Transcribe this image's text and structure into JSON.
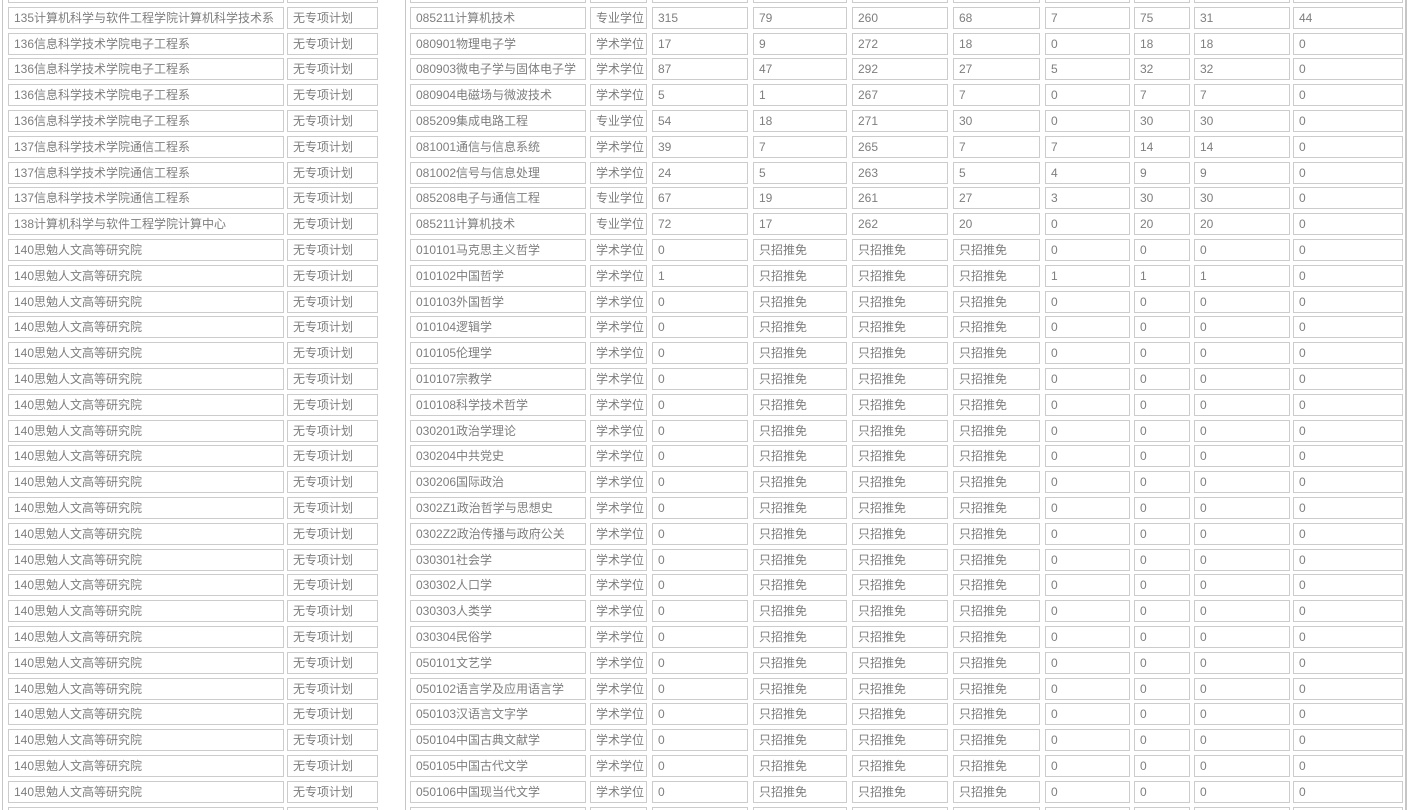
{
  "colors": {
    "cell_border": "#cccccc",
    "frame_border": "#c6c6c6",
    "text": "#7e7e7e",
    "background": "#ffffff"
  },
  "table": {
    "rows": [
      [
        "135计算机科学与软件工程学院计算机科学技术系",
        "无专项计划",
        "085211计算机技术",
        "专业学位",
        "315",
        "79",
        "260",
        "68",
        "7",
        "75",
        "31",
        "44"
      ],
      [
        "136信息科学技术学院电子工程系",
        "无专项计划",
        "080901物理电子学",
        "学术学位",
        "17",
        "9",
        "272",
        "18",
        "0",
        "18",
        "18",
        "0"
      ],
      [
        "136信息科学技术学院电子工程系",
        "无专项计划",
        "080903微电子学与固体电子学",
        "学术学位",
        "87",
        "47",
        "292",
        "27",
        "5",
        "32",
        "32",
        "0"
      ],
      [
        "136信息科学技术学院电子工程系",
        "无专项计划",
        "080904电磁场与微波技术",
        "学术学位",
        "5",
        "1",
        "267",
        "7",
        "0",
        "7",
        "7",
        "0"
      ],
      [
        "136信息科学技术学院电子工程系",
        "无专项计划",
        "085209集成电路工程",
        "专业学位",
        "54",
        "18",
        "271",
        "30",
        "0",
        "30",
        "30",
        "0"
      ],
      [
        "137信息科学技术学院通信工程系",
        "无专项计划",
        "081001通信与信息系统",
        "学术学位",
        "39",
        "7",
        "265",
        "7",
        "7",
        "14",
        "14",
        "0"
      ],
      [
        "137信息科学技术学院通信工程系",
        "无专项计划",
        "081002信号与信息处理",
        "学术学位",
        "24",
        "5",
        "263",
        "5",
        "4",
        "9",
        "9",
        "0"
      ],
      [
        "137信息科学技术学院通信工程系",
        "无专项计划",
        "085208电子与通信工程",
        "专业学位",
        "67",
        "19",
        "261",
        "27",
        "3",
        "30",
        "30",
        "0"
      ],
      [
        "138计算机科学与软件工程学院计算中心",
        "无专项计划",
        "085211计算机技术",
        "专业学位",
        "72",
        "17",
        "262",
        "20",
        "0",
        "20",
        "20",
        "0"
      ],
      [
        "140思勉人文高等研究院",
        "无专项计划",
        "010101马克思主义哲学",
        "学术学位",
        "0",
        "只招推免",
        "只招推免",
        "只招推免",
        "0",
        "0",
        "0",
        "0"
      ],
      [
        "140思勉人文高等研究院",
        "无专项计划",
        "010102中国哲学",
        "学术学位",
        "1",
        "只招推免",
        "只招推免",
        "只招推免",
        "1",
        "1",
        "1",
        "0"
      ],
      [
        "140思勉人文高等研究院",
        "无专项计划",
        "010103外国哲学",
        "学术学位",
        "0",
        "只招推免",
        "只招推免",
        "只招推免",
        "0",
        "0",
        "0",
        "0"
      ],
      [
        "140思勉人文高等研究院",
        "无专项计划",
        "010104逻辑学",
        "学术学位",
        "0",
        "只招推免",
        "只招推免",
        "只招推免",
        "0",
        "0",
        "0",
        "0"
      ],
      [
        "140思勉人文高等研究院",
        "无专项计划",
        "010105伦理学",
        "学术学位",
        "0",
        "只招推免",
        "只招推免",
        "只招推免",
        "0",
        "0",
        "0",
        "0"
      ],
      [
        "140思勉人文高等研究院",
        "无专项计划",
        "010107宗教学",
        "学术学位",
        "0",
        "只招推免",
        "只招推免",
        "只招推免",
        "0",
        "0",
        "0",
        "0"
      ],
      [
        "140思勉人文高等研究院",
        "无专项计划",
        "010108科学技术哲学",
        "学术学位",
        "0",
        "只招推免",
        "只招推免",
        "只招推免",
        "0",
        "0",
        "0",
        "0"
      ],
      [
        "140思勉人文高等研究院",
        "无专项计划",
        "030201政治学理论",
        "学术学位",
        "0",
        "只招推免",
        "只招推免",
        "只招推免",
        "0",
        "0",
        "0",
        "0"
      ],
      [
        "140思勉人文高等研究院",
        "无专项计划",
        "030204中共党史",
        "学术学位",
        "0",
        "只招推免",
        "只招推免",
        "只招推免",
        "0",
        "0",
        "0",
        "0"
      ],
      [
        "140思勉人文高等研究院",
        "无专项计划",
        "030206国际政治",
        "学术学位",
        "0",
        "只招推免",
        "只招推免",
        "只招推免",
        "0",
        "0",
        "0",
        "0"
      ],
      [
        "140思勉人文高等研究院",
        "无专项计划",
        "0302Z1政治哲学与思想史",
        "学术学位",
        "0",
        "只招推免",
        "只招推免",
        "只招推免",
        "0",
        "0",
        "0",
        "0"
      ],
      [
        "140思勉人文高等研究院",
        "无专项计划",
        "0302Z2政治传播与政府公关",
        "学术学位",
        "0",
        "只招推免",
        "只招推免",
        "只招推免",
        "0",
        "0",
        "0",
        "0"
      ],
      [
        "140思勉人文高等研究院",
        "无专项计划",
        "030301社会学",
        "学术学位",
        "0",
        "只招推免",
        "只招推免",
        "只招推免",
        "0",
        "0",
        "0",
        "0"
      ],
      [
        "140思勉人文高等研究院",
        "无专项计划",
        "030302人口学",
        "学术学位",
        "0",
        "只招推免",
        "只招推免",
        "只招推免",
        "0",
        "0",
        "0",
        "0"
      ],
      [
        "140思勉人文高等研究院",
        "无专项计划",
        "030303人类学",
        "学术学位",
        "0",
        "只招推免",
        "只招推免",
        "只招推免",
        "0",
        "0",
        "0",
        "0"
      ],
      [
        "140思勉人文高等研究院",
        "无专项计划",
        "030304民俗学",
        "学术学位",
        "0",
        "只招推免",
        "只招推免",
        "只招推免",
        "0",
        "0",
        "0",
        "0"
      ],
      [
        "140思勉人文高等研究院",
        "无专项计划",
        "050101文艺学",
        "学术学位",
        "0",
        "只招推免",
        "只招推免",
        "只招推免",
        "0",
        "0",
        "0",
        "0"
      ],
      [
        "140思勉人文高等研究院",
        "无专项计划",
        "050102语言学及应用语言学",
        "学术学位",
        "0",
        "只招推免",
        "只招推免",
        "只招推免",
        "0",
        "0",
        "0",
        "0"
      ],
      [
        "140思勉人文高等研究院",
        "无专项计划",
        "050103汉语言文字学",
        "学术学位",
        "0",
        "只招推免",
        "只招推免",
        "只招推免",
        "0",
        "0",
        "0",
        "0"
      ],
      [
        "140思勉人文高等研究院",
        "无专项计划",
        "050104中国古典文献学",
        "学术学位",
        "0",
        "只招推免",
        "只招推免",
        "只招推免",
        "0",
        "0",
        "0",
        "0"
      ],
      [
        "140思勉人文高等研究院",
        "无专项计划",
        "050105中国古代文学",
        "学术学位",
        "0",
        "只招推免",
        "只招推免",
        "只招推免",
        "0",
        "0",
        "0",
        "0"
      ],
      [
        "140思勉人文高等研究院",
        "无专项计划",
        "050106中国现当代文学",
        "学术学位",
        "0",
        "只招推免",
        "只招推免",
        "只招推免",
        "0",
        "0",
        "0",
        "0"
      ]
    ]
  }
}
